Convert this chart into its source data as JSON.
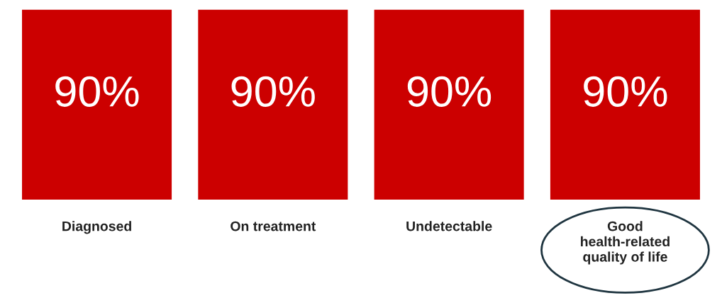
{
  "chart_data": {
    "type": "bar",
    "categories": [
      "Diagnosed",
      "On treatment",
      "Undetectable",
      "Good\nhealth-related\nquality of life"
    ],
    "values": [
      90,
      90,
      90,
      90
    ],
    "value_labels": [
      "90%",
      "90%",
      "90%",
      "90%"
    ],
    "color": "#cc0000"
  }
}
